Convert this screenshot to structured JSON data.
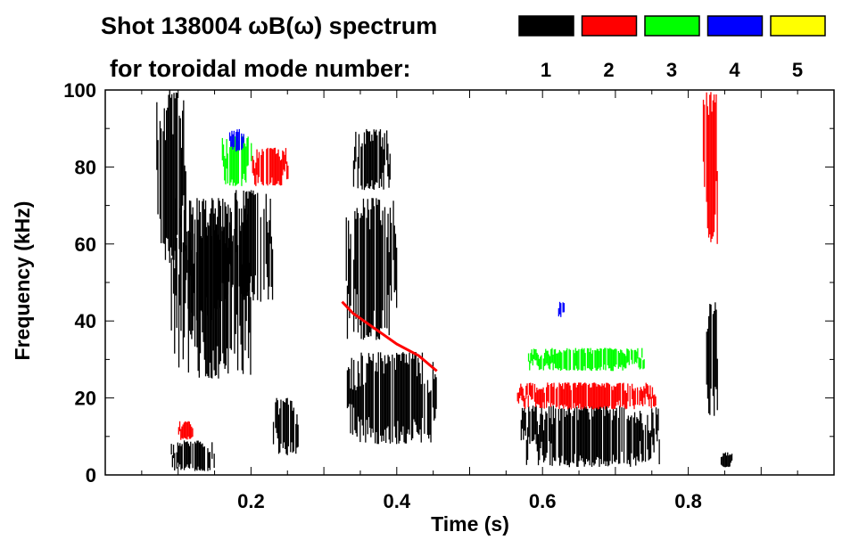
{
  "chart_data": {
    "type": "heatmap",
    "title": "Shot 138004 ωB(ω) spectrum",
    "subtitle": "for toroidal mode number:",
    "xlabel": "Time (s)",
    "ylabel": "Frequency (kHz)",
    "xlim": [
      0,
      1.0
    ],
    "ylim": [
      0,
      100
    ],
    "x_ticks": [
      "0.2",
      "0.4",
      "0.6",
      "0.8"
    ],
    "x_tick_values": [
      0.2,
      0.4,
      0.6,
      0.8
    ],
    "y_ticks": [
      "0",
      "20",
      "40",
      "60",
      "80",
      "100"
    ],
    "y_tick_values": [
      0,
      20,
      40,
      60,
      80,
      100
    ],
    "legend": [
      {
        "label": "1",
        "color": "#000000"
      },
      {
        "label": "2",
        "color": "#ff0000"
      },
      {
        "label": "3",
        "color": "#00ff00"
      },
      {
        "label": "4",
        "color": "#0000ff"
      },
      {
        "label": "5",
        "color": "#ffff00"
      }
    ],
    "blobs": [
      {
        "mode": 1,
        "t": [
          0.07,
          0.11
        ],
        "f": [
          55,
          100
        ]
      },
      {
        "mode": 1,
        "t": [
          0.09,
          0.2
        ],
        "f": [
          25,
          72
        ]
      },
      {
        "mode": 1,
        "t": [
          0.11,
          0.17
        ],
        "f": [
          40,
          65
        ]
      },
      {
        "mode": 1,
        "t": [
          0.17,
          0.23
        ],
        "f": [
          45,
          74
        ]
      },
      {
        "mode": 1,
        "t": [
          0.09,
          0.15
        ],
        "f": [
          1,
          9
        ]
      },
      {
        "mode": 1,
        "t": [
          0.23,
          0.265
        ],
        "f": [
          5,
          20
        ]
      },
      {
        "mode": 1,
        "t": [
          0.33,
          0.455
        ],
        "f": [
          8,
          32
        ]
      },
      {
        "mode": 1,
        "t": [
          0.34,
          0.39
        ],
        "f": [
          74,
          90
        ]
      },
      {
        "mode": 1,
        "t": [
          0.33,
          0.4
        ],
        "f": [
          35,
          72
        ]
      },
      {
        "mode": 1,
        "t": [
          0.57,
          0.76
        ],
        "f": [
          2,
          18
        ]
      },
      {
        "mode": 1,
        "t": [
          0.823,
          0.84
        ],
        "f": [
          15,
          45
        ]
      },
      {
        "mode": 1,
        "t": [
          0.843,
          0.86
        ],
        "f": [
          2,
          6
        ]
      },
      {
        "mode": 2,
        "t": [
          0.2,
          0.25
        ],
        "f": [
          75,
          85
        ]
      },
      {
        "mode": 2,
        "t": [
          0.565,
          0.755
        ],
        "f": [
          17,
          24
        ]
      },
      {
        "mode": 2,
        "t": [
          0.82,
          0.84
        ],
        "f": [
          60,
          100
        ]
      },
      {
        "mode": 2,
        "t": [
          0.1,
          0.12
        ],
        "f": [
          9,
          14
        ]
      },
      {
        "mode": 3,
        "t": [
          0.16,
          0.2
        ],
        "f": [
          75,
          88
        ]
      },
      {
        "mode": 3,
        "t": [
          0.58,
          0.74
        ],
        "f": [
          27,
          33
        ]
      },
      {
        "mode": 4,
        "t": [
          0.17,
          0.19
        ],
        "f": [
          84,
          90
        ]
      },
      {
        "mode": 4,
        "t": [
          0.62,
          0.63
        ],
        "f": [
          41,
          45
        ]
      }
    ],
    "lines": [
      {
        "mode": 2,
        "points": [
          [
            0.325,
            45
          ],
          [
            0.34,
            42
          ],
          [
            0.37,
            38
          ],
          [
            0.4,
            34
          ],
          [
            0.43,
            31
          ],
          [
            0.455,
            27
          ]
        ]
      }
    ]
  }
}
